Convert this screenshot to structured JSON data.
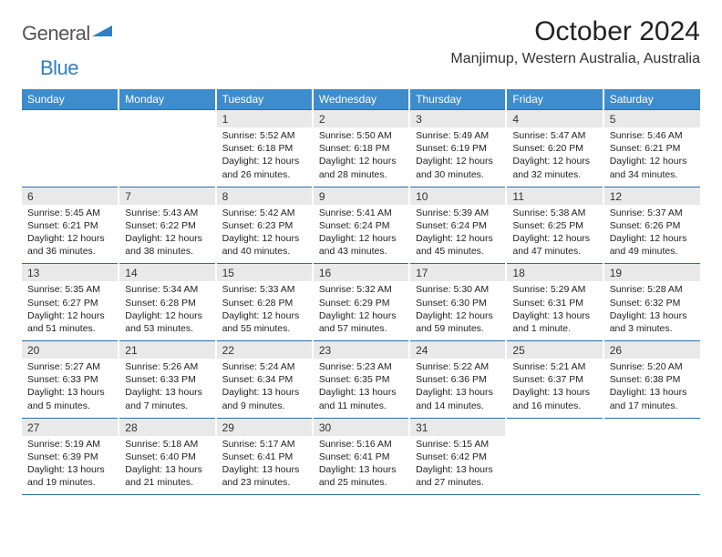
{
  "logo": {
    "text1": "General",
    "text2": "Blue"
  },
  "title": "October 2024",
  "location": "Manjimup, Western Australia, Australia",
  "colors": {
    "header_bg": "#3e8ccc",
    "rule": "#2d6da3",
    "daynum_bg": "#e9e9e9"
  },
  "dow": [
    "Sunday",
    "Monday",
    "Tuesday",
    "Wednesday",
    "Thursday",
    "Friday",
    "Saturday"
  ],
  "weeks": [
    [
      null,
      null,
      {
        "n": "1",
        "sr": "Sunrise: 5:52 AM",
        "ss": "Sunset: 6:18 PM",
        "d1": "Daylight: 12 hours",
        "d2": "and 26 minutes."
      },
      {
        "n": "2",
        "sr": "Sunrise: 5:50 AM",
        "ss": "Sunset: 6:18 PM",
        "d1": "Daylight: 12 hours",
        "d2": "and 28 minutes."
      },
      {
        "n": "3",
        "sr": "Sunrise: 5:49 AM",
        "ss": "Sunset: 6:19 PM",
        "d1": "Daylight: 12 hours",
        "d2": "and 30 minutes."
      },
      {
        "n": "4",
        "sr": "Sunrise: 5:47 AM",
        "ss": "Sunset: 6:20 PM",
        "d1": "Daylight: 12 hours",
        "d2": "and 32 minutes."
      },
      {
        "n": "5",
        "sr": "Sunrise: 5:46 AM",
        "ss": "Sunset: 6:21 PM",
        "d1": "Daylight: 12 hours",
        "d2": "and 34 minutes."
      }
    ],
    [
      {
        "n": "6",
        "sr": "Sunrise: 5:45 AM",
        "ss": "Sunset: 6:21 PM",
        "d1": "Daylight: 12 hours",
        "d2": "and 36 minutes."
      },
      {
        "n": "7",
        "sr": "Sunrise: 5:43 AM",
        "ss": "Sunset: 6:22 PM",
        "d1": "Daylight: 12 hours",
        "d2": "and 38 minutes."
      },
      {
        "n": "8",
        "sr": "Sunrise: 5:42 AM",
        "ss": "Sunset: 6:23 PM",
        "d1": "Daylight: 12 hours",
        "d2": "and 40 minutes."
      },
      {
        "n": "9",
        "sr": "Sunrise: 5:41 AM",
        "ss": "Sunset: 6:24 PM",
        "d1": "Daylight: 12 hours",
        "d2": "and 43 minutes."
      },
      {
        "n": "10",
        "sr": "Sunrise: 5:39 AM",
        "ss": "Sunset: 6:24 PM",
        "d1": "Daylight: 12 hours",
        "d2": "and 45 minutes."
      },
      {
        "n": "11",
        "sr": "Sunrise: 5:38 AM",
        "ss": "Sunset: 6:25 PM",
        "d1": "Daylight: 12 hours",
        "d2": "and 47 minutes."
      },
      {
        "n": "12",
        "sr": "Sunrise: 5:37 AM",
        "ss": "Sunset: 6:26 PM",
        "d1": "Daylight: 12 hours",
        "d2": "and 49 minutes."
      }
    ],
    [
      {
        "n": "13",
        "sr": "Sunrise: 5:35 AM",
        "ss": "Sunset: 6:27 PM",
        "d1": "Daylight: 12 hours",
        "d2": "and 51 minutes."
      },
      {
        "n": "14",
        "sr": "Sunrise: 5:34 AM",
        "ss": "Sunset: 6:28 PM",
        "d1": "Daylight: 12 hours",
        "d2": "and 53 minutes."
      },
      {
        "n": "15",
        "sr": "Sunrise: 5:33 AM",
        "ss": "Sunset: 6:28 PM",
        "d1": "Daylight: 12 hours",
        "d2": "and 55 minutes."
      },
      {
        "n": "16",
        "sr": "Sunrise: 5:32 AM",
        "ss": "Sunset: 6:29 PM",
        "d1": "Daylight: 12 hours",
        "d2": "and 57 minutes."
      },
      {
        "n": "17",
        "sr": "Sunrise: 5:30 AM",
        "ss": "Sunset: 6:30 PM",
        "d1": "Daylight: 12 hours",
        "d2": "and 59 minutes."
      },
      {
        "n": "18",
        "sr": "Sunrise: 5:29 AM",
        "ss": "Sunset: 6:31 PM",
        "d1": "Daylight: 13 hours",
        "d2": "and 1 minute."
      },
      {
        "n": "19",
        "sr": "Sunrise: 5:28 AM",
        "ss": "Sunset: 6:32 PM",
        "d1": "Daylight: 13 hours",
        "d2": "and 3 minutes."
      }
    ],
    [
      {
        "n": "20",
        "sr": "Sunrise: 5:27 AM",
        "ss": "Sunset: 6:33 PM",
        "d1": "Daylight: 13 hours",
        "d2": "and 5 minutes."
      },
      {
        "n": "21",
        "sr": "Sunrise: 5:26 AM",
        "ss": "Sunset: 6:33 PM",
        "d1": "Daylight: 13 hours",
        "d2": "and 7 minutes."
      },
      {
        "n": "22",
        "sr": "Sunrise: 5:24 AM",
        "ss": "Sunset: 6:34 PM",
        "d1": "Daylight: 13 hours",
        "d2": "and 9 minutes."
      },
      {
        "n": "23",
        "sr": "Sunrise: 5:23 AM",
        "ss": "Sunset: 6:35 PM",
        "d1": "Daylight: 13 hours",
        "d2": "and 11 minutes."
      },
      {
        "n": "24",
        "sr": "Sunrise: 5:22 AM",
        "ss": "Sunset: 6:36 PM",
        "d1": "Daylight: 13 hours",
        "d2": "and 14 minutes."
      },
      {
        "n": "25",
        "sr": "Sunrise: 5:21 AM",
        "ss": "Sunset: 6:37 PM",
        "d1": "Daylight: 13 hours",
        "d2": "and 16 minutes."
      },
      {
        "n": "26",
        "sr": "Sunrise: 5:20 AM",
        "ss": "Sunset: 6:38 PM",
        "d1": "Daylight: 13 hours",
        "d2": "and 17 minutes."
      }
    ],
    [
      {
        "n": "27",
        "sr": "Sunrise: 5:19 AM",
        "ss": "Sunset: 6:39 PM",
        "d1": "Daylight: 13 hours",
        "d2": "and 19 minutes."
      },
      {
        "n": "28",
        "sr": "Sunrise: 5:18 AM",
        "ss": "Sunset: 6:40 PM",
        "d1": "Daylight: 13 hours",
        "d2": "and 21 minutes."
      },
      {
        "n": "29",
        "sr": "Sunrise: 5:17 AM",
        "ss": "Sunset: 6:41 PM",
        "d1": "Daylight: 13 hours",
        "d2": "and 23 minutes."
      },
      {
        "n": "30",
        "sr": "Sunrise: 5:16 AM",
        "ss": "Sunset: 6:41 PM",
        "d1": "Daylight: 13 hours",
        "d2": "and 25 minutes."
      },
      {
        "n": "31",
        "sr": "Sunrise: 5:15 AM",
        "ss": "Sunset: 6:42 PM",
        "d1": "Daylight: 13 hours",
        "d2": "and 27 minutes."
      },
      null,
      null
    ]
  ]
}
